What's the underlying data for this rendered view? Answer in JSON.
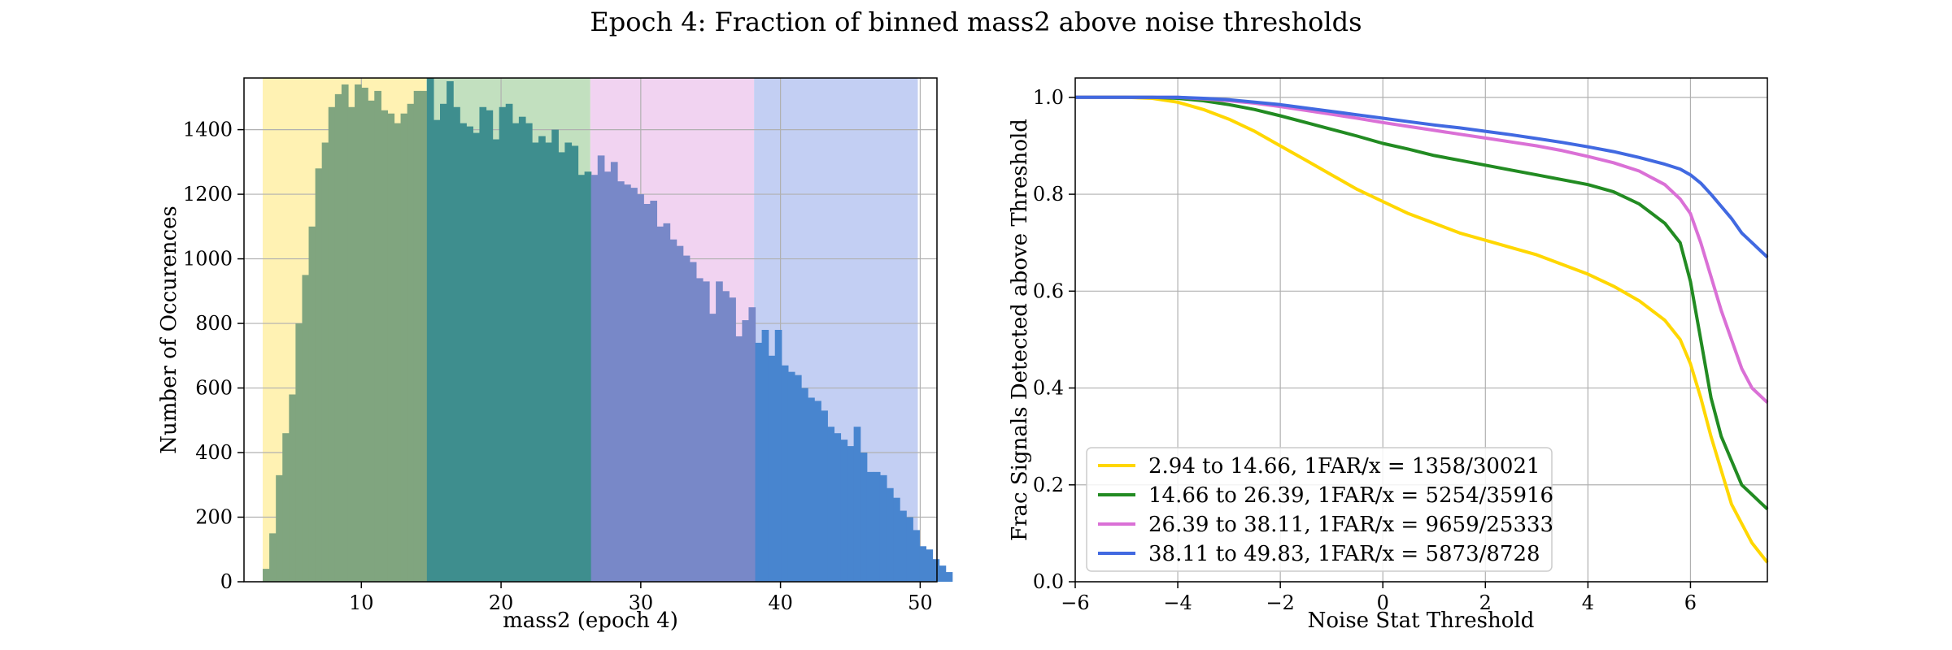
{
  "figure": {
    "title": "Epoch 4: Fraction of binned mass2 above noise thresholds"
  },
  "chart_data": [
    {
      "type": "bar",
      "subtype": "histogram",
      "xlabel": "mass2 (epoch 4)",
      "ylabel": "Number of Occurences",
      "xlim": [
        1.6,
        51.2
      ],
      "ylim": [
        0,
        1560
      ],
      "xticks": [
        10,
        20,
        30,
        40,
        50
      ],
      "yticks": [
        0,
        200,
        400,
        600,
        800,
        1000,
        1200,
        1400
      ],
      "grid": true,
      "bin_start": 2.94,
      "bin_width": 0.47,
      "counts": [
        40,
        150,
        330,
        460,
        580,
        800,
        950,
        1100,
        1280,
        1360,
        1470,
        1510,
        1540,
        1470,
        1540,
        1530,
        1490,
        1520,
        1460,
        1450,
        1420,
        1450,
        1480,
        1520,
        1520,
        1560,
        1430,
        1480,
        1550,
        1470,
        1420,
        1410,
        1390,
        1470,
        1460,
        1370,
        1470,
        1480,
        1420,
        1440,
        1420,
        1360,
        1380,
        1360,
        1400,
        1330,
        1360,
        1350,
        1260,
        1270,
        1260,
        1320,
        1270,
        1300,
        1240,
        1230,
        1220,
        1200,
        1170,
        1180,
        1100,
        1110,
        1060,
        1040,
        1010,
        990,
        940,
        930,
        830,
        930,
        900,
        880,
        760,
        810,
        850,
        740,
        780,
        700,
        780,
        670,
        650,
        640,
        600,
        570,
        560,
        530,
        480,
        460,
        440,
        420,
        480,
        400,
        340,
        340,
        330,
        290,
        260,
        220,
        200,
        160,
        110,
        100,
        70,
        50,
        30
      ],
      "shaded_bins": [
        {
          "lo": 2.94,
          "hi": 14.66,
          "color": "#fff2b3"
        },
        {
          "lo": 14.66,
          "hi": 26.39,
          "color": "#c2e0bf"
        },
        {
          "lo": 26.39,
          "hi": 38.11,
          "color": "#f1d3f1"
        },
        {
          "lo": 38.11,
          "hi": 49.83,
          "color": "#c3cff3"
        }
      ],
      "bar_colors": [
        "#80a57f",
        "#3e8e8e",
        "#7888c8",
        "#4885cf"
      ]
    },
    {
      "type": "line",
      "xlabel": "Noise Stat Threshold",
      "ylabel": "Frac Signals Detected above Threshold",
      "xlim": [
        -6,
        7.5
      ],
      "ylim": [
        0.0,
        1.04
      ],
      "xticks": [
        -6,
        -4,
        -2,
        0,
        2,
        4,
        6
      ],
      "xtick_labels": [
        "−6",
        "−4",
        "−2",
        "0",
        "2",
        "4",
        "6"
      ],
      "yticks": [
        0.0,
        0.2,
        0.4,
        0.6,
        0.8,
        1.0
      ],
      "ytick_labels": [
        "0.0",
        "0.2",
        "0.4",
        "0.6",
        "0.8",
        "1.0"
      ],
      "grid": true,
      "legend_position": "lower-left",
      "series": [
        {
          "name": "2.94 to 14.66, 1FAR/x = 1358/30021",
          "color": "#ffd700",
          "x": [
            -6,
            -5,
            -4.5,
            -4,
            -3.5,
            -3,
            -2.5,
            -2,
            -1.5,
            -1,
            -0.5,
            0,
            0.5,
            1,
            1.5,
            2,
            2.5,
            3,
            3.5,
            4,
            4.5,
            5,
            5.5,
            5.8,
            6,
            6.2,
            6.4,
            6.6,
            6.8,
            7,
            7.2,
            7.5
          ],
          "y": [
            1.0,
            1.0,
            0.998,
            0.99,
            0.975,
            0.955,
            0.93,
            0.9,
            0.87,
            0.84,
            0.81,
            0.785,
            0.76,
            0.74,
            0.72,
            0.705,
            0.69,
            0.675,
            0.655,
            0.635,
            0.61,
            0.58,
            0.54,
            0.5,
            0.45,
            0.38,
            0.3,
            0.23,
            0.16,
            0.12,
            0.08,
            0.04
          ]
        },
        {
          "name": "14.66 to 26.39, 1FAR/x = 5254/35916",
          "color": "#228b22",
          "x": [
            -6,
            -5,
            -4.5,
            -4,
            -3.5,
            -3,
            -2.5,
            -2,
            -1.5,
            -1,
            -0.5,
            0,
            0.5,
            1,
            1.5,
            2,
            2.5,
            3,
            3.5,
            4,
            4.5,
            5,
            5.5,
            5.8,
            6,
            6.2,
            6.4,
            6.6,
            6.8,
            7,
            7.2,
            7.5
          ],
          "y": [
            1.0,
            1.0,
            1.0,
            0.998,
            0.993,
            0.985,
            0.975,
            0.962,
            0.948,
            0.934,
            0.92,
            0.905,
            0.893,
            0.88,
            0.87,
            0.86,
            0.85,
            0.84,
            0.83,
            0.82,
            0.805,
            0.78,
            0.74,
            0.7,
            0.62,
            0.5,
            0.38,
            0.3,
            0.25,
            0.2,
            0.18,
            0.15
          ]
        },
        {
          "name": "26.39 to 38.11, 1FAR/x = 9659/25333",
          "color": "#da70d6",
          "x": [
            -6,
            -5,
            -4.5,
            -4,
            -3.5,
            -3,
            -2.5,
            -2,
            -1.5,
            -1,
            -0.5,
            0,
            0.5,
            1,
            1.5,
            2,
            2.5,
            3,
            3.5,
            4,
            4.5,
            5,
            5.5,
            5.8,
            6,
            6.2,
            6.4,
            6.6,
            6.8,
            7,
            7.2,
            7.5
          ],
          "y": [
            1.0,
            1.0,
            1.0,
            1.0,
            0.997,
            0.993,
            0.988,
            0.981,
            0.973,
            0.965,
            0.957,
            0.948,
            0.94,
            0.932,
            0.924,
            0.916,
            0.908,
            0.9,
            0.89,
            0.878,
            0.865,
            0.848,
            0.82,
            0.79,
            0.76,
            0.7,
            0.63,
            0.56,
            0.5,
            0.44,
            0.4,
            0.37
          ]
        },
        {
          "name": "38.11 to 49.83, 1FAR/x = 5873/8728",
          "color": "#4169e1",
          "x": [
            -6,
            -5,
            -4.5,
            -4,
            -3.5,
            -3,
            -2.5,
            -2,
            -1.5,
            -1,
            -0.5,
            0,
            0.5,
            1,
            1.5,
            2,
            2.5,
            3,
            3.5,
            4,
            4.5,
            5,
            5.5,
            5.8,
            6,
            6.2,
            6.4,
            6.6,
            6.8,
            7,
            7.2,
            7.5
          ],
          "y": [
            1.0,
            1.0,
            1.0,
            1.0,
            0.998,
            0.995,
            0.99,
            0.985,
            0.978,
            0.971,
            0.964,
            0.957,
            0.95,
            0.943,
            0.937,
            0.93,
            0.923,
            0.915,
            0.907,
            0.898,
            0.888,
            0.876,
            0.862,
            0.852,
            0.84,
            0.823,
            0.8,
            0.775,
            0.75,
            0.72,
            0.7,
            0.67
          ]
        }
      ]
    }
  ]
}
